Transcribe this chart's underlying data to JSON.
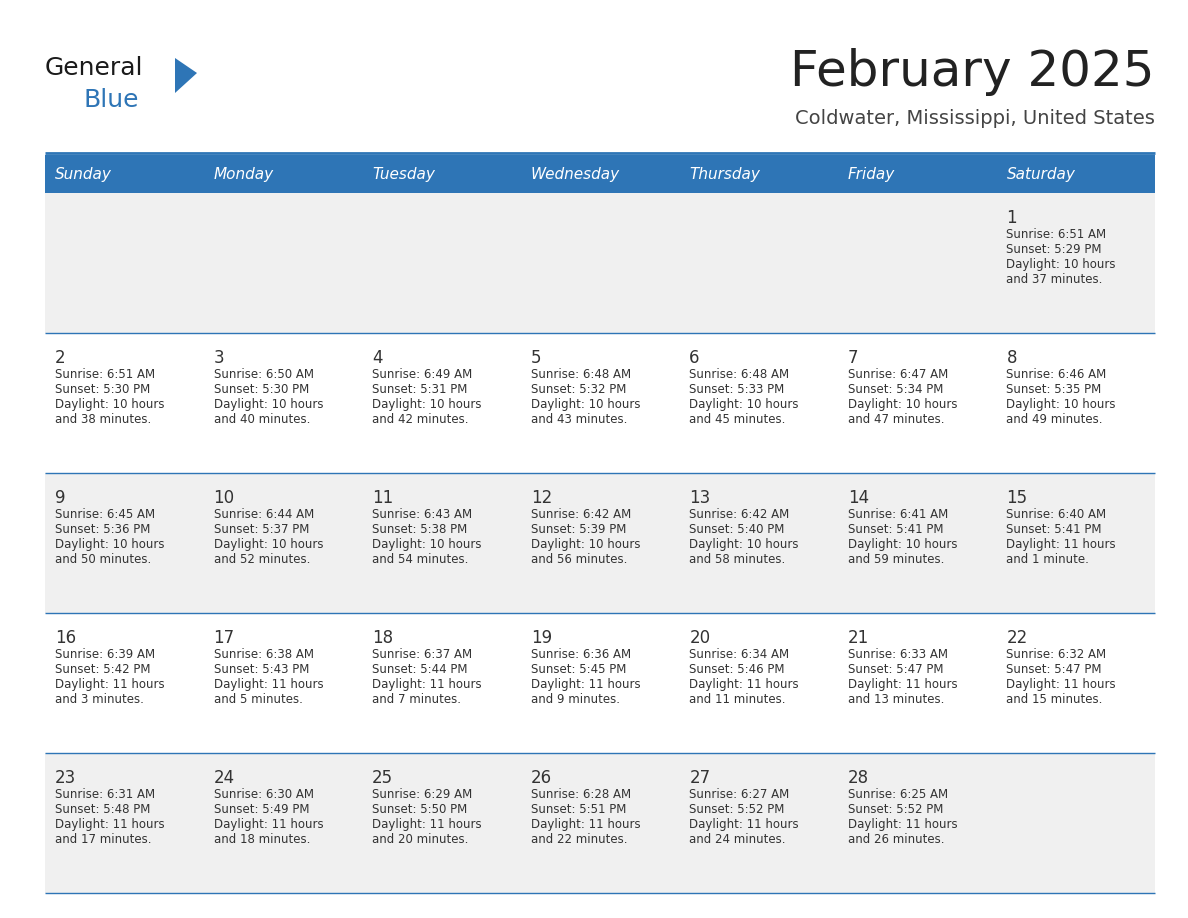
{
  "title": "February 2025",
  "subtitle": "Coldwater, Mississippi, United States",
  "header_color": "#2e75b6",
  "header_text_color": "#ffffff",
  "bg_color": "#ffffff",
  "cell_bg_even": "#f0f0f0",
  "cell_bg_odd": "#ffffff",
  "day_headers": [
    "Sunday",
    "Monday",
    "Tuesday",
    "Wednesday",
    "Thursday",
    "Friday",
    "Saturday"
  ],
  "title_color": "#222222",
  "subtitle_color": "#444444",
  "day_number_color": "#333333",
  "info_color": "#333333",
  "line_color": "#2e75b6",
  "logo_color": "#2e75b6",
  "weeks": [
    [
      {
        "day": null,
        "sunrise": null,
        "sunset": null,
        "daylight": null
      },
      {
        "day": null,
        "sunrise": null,
        "sunset": null,
        "daylight": null
      },
      {
        "day": null,
        "sunrise": null,
        "sunset": null,
        "daylight": null
      },
      {
        "day": null,
        "sunrise": null,
        "sunset": null,
        "daylight": null
      },
      {
        "day": null,
        "sunrise": null,
        "sunset": null,
        "daylight": null
      },
      {
        "day": null,
        "sunrise": null,
        "sunset": null,
        "daylight": null
      },
      {
        "day": 1,
        "sunrise": "6:51 AM",
        "sunset": "5:29 PM",
        "daylight": "10 hours and 37 minutes"
      }
    ],
    [
      {
        "day": 2,
        "sunrise": "6:51 AM",
        "sunset": "5:30 PM",
        "daylight": "10 hours and 38 minutes"
      },
      {
        "day": 3,
        "sunrise": "6:50 AM",
        "sunset": "5:30 PM",
        "daylight": "10 hours and 40 minutes"
      },
      {
        "day": 4,
        "sunrise": "6:49 AM",
        "sunset": "5:31 PM",
        "daylight": "10 hours and 42 minutes"
      },
      {
        "day": 5,
        "sunrise": "6:48 AM",
        "sunset": "5:32 PM",
        "daylight": "10 hours and 43 minutes"
      },
      {
        "day": 6,
        "sunrise": "6:48 AM",
        "sunset": "5:33 PM",
        "daylight": "10 hours and 45 minutes"
      },
      {
        "day": 7,
        "sunrise": "6:47 AM",
        "sunset": "5:34 PM",
        "daylight": "10 hours and 47 minutes"
      },
      {
        "day": 8,
        "sunrise": "6:46 AM",
        "sunset": "5:35 PM",
        "daylight": "10 hours and 49 minutes"
      }
    ],
    [
      {
        "day": 9,
        "sunrise": "6:45 AM",
        "sunset": "5:36 PM",
        "daylight": "10 hours and 50 minutes"
      },
      {
        "day": 10,
        "sunrise": "6:44 AM",
        "sunset": "5:37 PM",
        "daylight": "10 hours and 52 minutes"
      },
      {
        "day": 11,
        "sunrise": "6:43 AM",
        "sunset": "5:38 PM",
        "daylight": "10 hours and 54 minutes"
      },
      {
        "day": 12,
        "sunrise": "6:42 AM",
        "sunset": "5:39 PM",
        "daylight": "10 hours and 56 minutes"
      },
      {
        "day": 13,
        "sunrise": "6:42 AM",
        "sunset": "5:40 PM",
        "daylight": "10 hours and 58 minutes"
      },
      {
        "day": 14,
        "sunrise": "6:41 AM",
        "sunset": "5:41 PM",
        "daylight": "10 hours and 59 minutes"
      },
      {
        "day": 15,
        "sunrise": "6:40 AM",
        "sunset": "5:41 PM",
        "daylight": "11 hours and 1 minute"
      }
    ],
    [
      {
        "day": 16,
        "sunrise": "6:39 AM",
        "sunset": "5:42 PM",
        "daylight": "11 hours and 3 minutes"
      },
      {
        "day": 17,
        "sunrise": "6:38 AM",
        "sunset": "5:43 PM",
        "daylight": "11 hours and 5 minutes"
      },
      {
        "day": 18,
        "sunrise": "6:37 AM",
        "sunset": "5:44 PM",
        "daylight": "11 hours and 7 minutes"
      },
      {
        "day": 19,
        "sunrise": "6:36 AM",
        "sunset": "5:45 PM",
        "daylight": "11 hours and 9 minutes"
      },
      {
        "day": 20,
        "sunrise": "6:34 AM",
        "sunset": "5:46 PM",
        "daylight": "11 hours and 11 minutes"
      },
      {
        "day": 21,
        "sunrise": "6:33 AM",
        "sunset": "5:47 PM",
        "daylight": "11 hours and 13 minutes"
      },
      {
        "day": 22,
        "sunrise": "6:32 AM",
        "sunset": "5:47 PM",
        "daylight": "11 hours and 15 minutes"
      }
    ],
    [
      {
        "day": 23,
        "sunrise": "6:31 AM",
        "sunset": "5:48 PM",
        "daylight": "11 hours and 17 minutes"
      },
      {
        "day": 24,
        "sunrise": "6:30 AM",
        "sunset": "5:49 PM",
        "daylight": "11 hours and 18 minutes"
      },
      {
        "day": 25,
        "sunrise": "6:29 AM",
        "sunset": "5:50 PM",
        "daylight": "11 hours and 20 minutes"
      },
      {
        "day": 26,
        "sunrise": "6:28 AM",
        "sunset": "5:51 PM",
        "daylight": "11 hours and 22 minutes"
      },
      {
        "day": 27,
        "sunrise": "6:27 AM",
        "sunset": "5:52 PM",
        "daylight": "11 hours and 24 minutes"
      },
      {
        "day": 28,
        "sunrise": "6:25 AM",
        "sunset": "5:52 PM",
        "daylight": "11 hours and 26 minutes"
      },
      {
        "day": null,
        "sunrise": null,
        "sunset": null,
        "daylight": null
      }
    ]
  ]
}
